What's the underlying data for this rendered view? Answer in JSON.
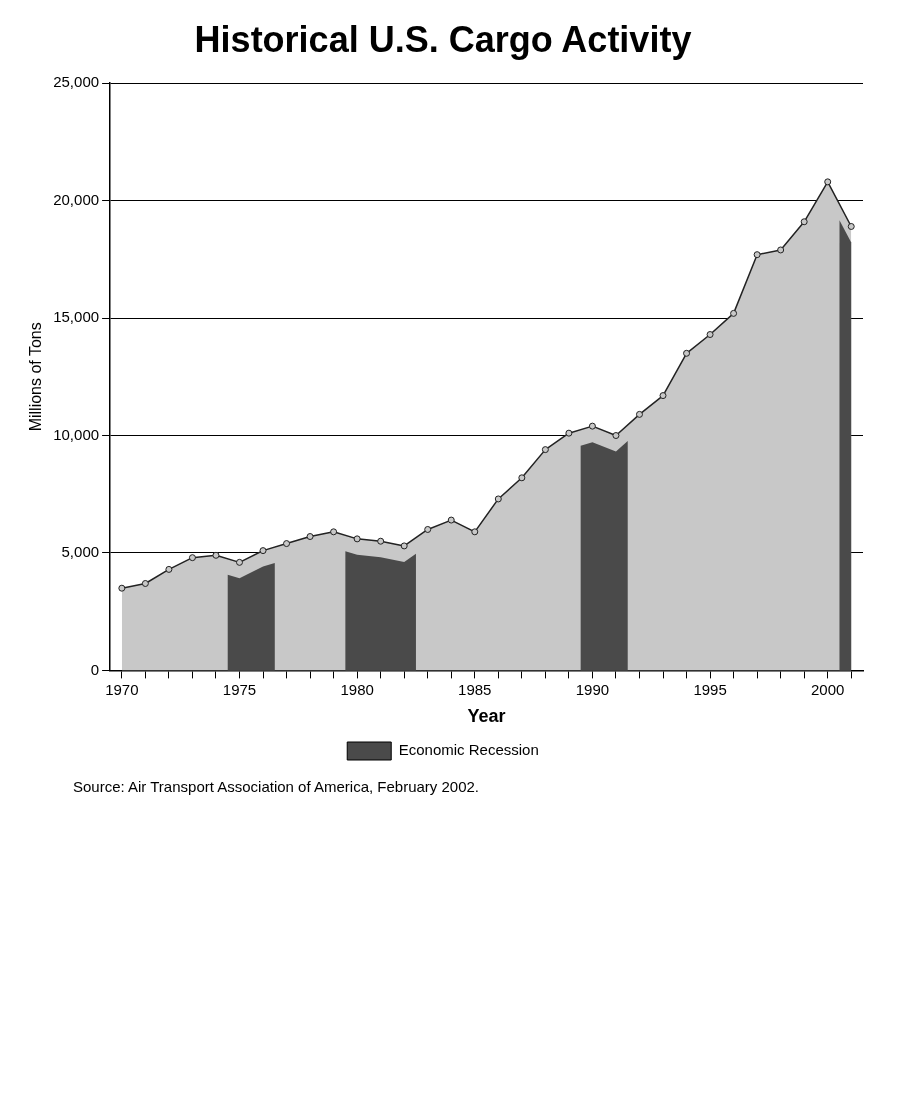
{
  "chart_data": {
    "type": "area",
    "title": "Historical U.S. Cargo Activity",
    "xlabel": "Year",
    "ylabel": "Millions of Tons",
    "x": [
      1970,
      1971,
      1972,
      1973,
      1974,
      1975,
      1976,
      1977,
      1978,
      1979,
      1980,
      1981,
      1982,
      1983,
      1984,
      1985,
      1986,
      1987,
      1988,
      1989,
      1990,
      1991,
      1992,
      1993,
      1994,
      1995,
      1996,
      1997,
      1998,
      1999,
      2000,
      2001
    ],
    "series": [
      {
        "color": "#c8c8c8",
        "values": [
          3500,
          3700,
          4300,
          4800,
          4900,
          4600,
          5100,
          5400,
          5700,
          5900,
          5600,
          5500,
          5300,
          6000,
          6400,
          5900,
          7300,
          8200,
          9400,
          10100,
          10400,
          10000,
          10900,
          11700,
          13500,
          14300,
          15200,
          17700,
          17900,
          19100,
          20800,
          18900
        ]
      }
    ],
    "xlim": [
      1969.5,
      2001.5
    ],
    "xticks": [
      1970,
      {
        "value": 1971,
        "label": null
      },
      {
        "value": 1972,
        "label": null
      },
      {
        "value": 1973,
        "label": null
      },
      {
        "value": 1974,
        "label": null
      },
      1975,
      {
        "value": 1976,
        "label": null
      },
      {
        "value": 1977,
        "label": null
      },
      {
        "value": 1978,
        "label": null
      },
      {
        "value": 1979,
        "label": null
      },
      1980,
      {
        "value": 1981,
        "label": null
      },
      {
        "value": 1982,
        "label": null
      },
      {
        "value": 1983,
        "label": null
      },
      {
        "value": 1984,
        "label": null
      },
      1985,
      {
        "value": 1986,
        "label": null
      },
      {
        "value": 1987,
        "label": null
      },
      {
        "value": 1988,
        "label": null
      },
      {
        "value": 1989,
        "label": null
      },
      1990,
      {
        "value": 1991,
        "label": null
      },
      {
        "value": 1992,
        "label": null
      },
      {
        "value": 1993,
        "label": null
      },
      {
        "value": 1994,
        "label": null
      },
      1995,
      {
        "value": 1996,
        "label": null
      },
      {
        "value": 1997,
        "label": null
      },
      {
        "value": 1998,
        "label": null
      },
      {
        "value": 1999,
        "label": null
      },
      2000,
      {
        "value": 2001,
        "label": null
      }
    ],
    "ylim": [
      0,
      25000
    ],
    "yticks": [
      0,
      {
        "value": 5000,
        "label": "5,000"
      },
      {
        "value": 10000,
        "label": "10,000"
      },
      {
        "value": 15000,
        "label": "15,000"
      },
      {
        "value": 20000,
        "label": "20,000"
      },
      {
        "value": 25000,
        "label": "25,000"
      }
    ],
    "bands": [
      {
        "axis": "x",
        "from": 1974.5,
        "to": 1976.5,
        "label": "Economic Recession",
        "color": "#4a4a4a"
      },
      {
        "axis": "x",
        "from": 1979.5,
        "to": 1982.5,
        "color": "#4a4a4a"
      },
      {
        "axis": "x",
        "from": 1989.5,
        "to": 1991.5,
        "color": "#4a4a4a"
      },
      {
        "axis": "x",
        "from": 2000.5,
        "to": 2001,
        "color": "#4a4a4a"
      }
    ],
    "annotations": [
      "Source:  Air Transport Association of America, February 2002."
    ],
    "grid": "y",
    "legend": "bottom",
    "marker": "circle",
    "line_style": "solid"
  }
}
